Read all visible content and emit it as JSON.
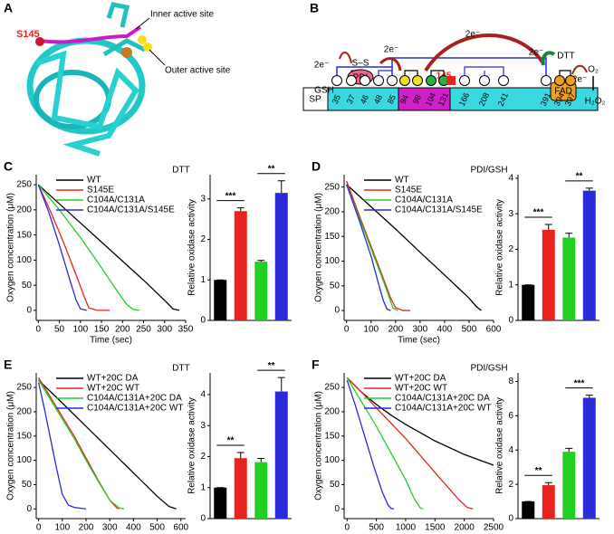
{
  "panel_labels": [
    "A",
    "B",
    "C",
    "D",
    "E",
    "F"
  ],
  "structure": {
    "site_label": "S145",
    "inner_label": "Inner active site",
    "outer_label": "Outer active site"
  },
  "domain_diagram": {
    "sp": "SP",
    "residues": [
      "35",
      "37",
      "46",
      "48",
      "85",
      "94",
      "98",
      "104",
      "131",
      "166",
      "208",
      "241",
      "391",
      "394",
      "397"
    ],
    "site": "145",
    "fad": "FAD",
    "pdi": "PDI",
    "disulfide": "S–S",
    "gsh": "GSH",
    "dtt": "DTT",
    "electron_labels": [
      "2e⁻",
      "2e⁻",
      "2e⁻",
      "2e⁻",
      "2e⁻"
    ],
    "oxygen": "O₂",
    "peroxide": "H₂O₂"
  },
  "chart_data": [
    {
      "type": "line",
      "annotation": "DTT",
      "x_label": "Time (sec)",
      "y_label": "Oxygen concentration (μM)",
      "xlim": [
        -5,
        350
      ],
      "ylim": [
        -20,
        270
      ],
      "xticks": [
        0,
        50,
        100,
        150,
        200,
        250,
        300,
        350
      ],
      "yticks": [
        0,
        50,
        100,
        150,
        200,
        250
      ],
      "series": [
        {
          "name": "WT",
          "color": "#000000",
          "x": [
            0,
            50,
            100,
            150,
            200,
            250,
            300,
            320,
            335
          ],
          "values": [
            250,
            212,
            174,
            136,
            98,
            60,
            20,
            3,
            0
          ]
        },
        {
          "name": "S145E",
          "color": "#e8231f",
          "x": [
            0,
            30,
            60,
            90,
            110,
            120,
            140,
            170
          ],
          "values": [
            250,
            195,
            135,
            70,
            25,
            5,
            0,
            0
          ]
        },
        {
          "name": "C104A/C131A",
          "color": "#22d022",
          "x": [
            0,
            50,
            100,
            150,
            190,
            210,
            225,
            240
          ],
          "values": [
            250,
            200,
            145,
            85,
            35,
            12,
            2,
            0
          ]
        },
        {
          "name": "C104A/C131A/S145E",
          "color": "#2a2ad8",
          "x": [
            0,
            25,
            50,
            75,
            90,
            100,
            115
          ],
          "values": [
            250,
            195,
            130,
            60,
            20,
            3,
            0
          ]
        }
      ]
    },
    {
      "type": "bar",
      "y_label": "Relative oxidase activity",
      "values": [
        1,
        2.7,
        1.45,
        3.15
      ],
      "errors": [
        0,
        0.08,
        0.03,
        0.3
      ],
      "colors": [
        "#000000",
        "#e8231f",
        "#22d022",
        "#2a2ad8"
      ],
      "ylim": [
        0,
        3.6
      ],
      "yticks": [
        0,
        1,
        2,
        3
      ],
      "significance": [
        "***",
        "**"
      ]
    },
    {
      "type": "line",
      "annotation": "PDI/GSH",
      "x_label": "Time (sec)",
      "y_label": "Oxygen concentration (μM)",
      "xlim": [
        -10,
        600
      ],
      "ylim": [
        -20,
        275
      ],
      "xticks": [
        0,
        100,
        200,
        300,
        400,
        500,
        600
      ],
      "yticks": [
        0,
        50,
        100,
        150,
        200,
        250
      ],
      "series": [
        {
          "name": "WT",
          "color": "#000000",
          "x": [
            0,
            100,
            200,
            300,
            400,
            500,
            530,
            550
          ],
          "values": [
            255,
            210,
            165,
            118,
            72,
            25,
            8,
            0
          ]
        },
        {
          "name": "S145E",
          "color": "#e8231f",
          "x": [
            0,
            50,
            100,
            150,
            180,
            200,
            230,
            260
          ],
          "values": [
            262,
            195,
            130,
            65,
            25,
            6,
            0,
            0
          ]
        },
        {
          "name": "C104A/C131A",
          "color": "#22d022",
          "x": [
            0,
            50,
            100,
            150,
            175,
            190,
            210
          ],
          "values": [
            255,
            190,
            125,
            60,
            25,
            5,
            0
          ]
        },
        {
          "name": "C104A/C131A/S145E",
          "color": "#2a2ad8",
          "x": [
            0,
            50,
            100,
            130,
            150,
            165,
            180
          ],
          "values": [
            255,
            185,
            110,
            55,
            20,
            3,
            0
          ]
        }
      ]
    },
    {
      "type": "bar",
      "y_label": "Relative oxidase activity",
      "values": [
        1,
        2.55,
        2.33,
        3.65
      ],
      "errors": [
        0,
        0.15,
        0.12,
        0.07
      ],
      "colors": [
        "#000000",
        "#e8231f",
        "#22d022",
        "#2a2ad8"
      ],
      "ylim": [
        0,
        4.1
      ],
      "yticks": [
        0,
        1,
        2,
        3,
        4
      ],
      "significance": [
        "***",
        "**"
      ]
    },
    {
      "type": "line",
      "annotation": "DTT",
      "x_label": "Time (sec)",
      "y_label": "Oxygen concentration (μM)",
      "xlim": [
        -10,
        620
      ],
      "ylim": [
        -20,
        280
      ],
      "xticks": [
        0,
        100,
        200,
        300,
        400,
        500,
        600
      ],
      "yticks": [
        0,
        50,
        100,
        150,
        200,
        250
      ],
      "series": [
        {
          "name": "WT+20C DA",
          "color": "#000000",
          "x": [
            0,
            100,
            200,
            300,
            400,
            500,
            550,
            580
          ],
          "values": [
            265,
            218,
            170,
            122,
            74,
            26,
            5,
            0
          ]
        },
        {
          "name": "WT+20C WT",
          "color": "#e8231f",
          "x": [
            0,
            50,
            100,
            150,
            200,
            250,
            300,
            330,
            340
          ],
          "values": [
            270,
            230,
            190,
            150,
            105,
            60,
            18,
            2,
            0
          ]
        },
        {
          "name": "C104A/C131A+20C DA",
          "color": "#22d022",
          "x": [
            0,
            50,
            100,
            150,
            200,
            250,
            300,
            340,
            360
          ],
          "values": [
            265,
            225,
            185,
            145,
            100,
            58,
            18,
            2,
            0
          ]
        },
        {
          "name": "C104A/C131A+20C WT",
          "color": "#2a2ad8",
          "x": [
            0,
            25,
            50,
            75,
            100,
            125,
            150,
            200
          ],
          "values": [
            260,
            205,
            145,
            85,
            30,
            8,
            3,
            0
          ]
        }
      ]
    },
    {
      "type": "bar",
      "y_label": "Relative oxidase activity",
      "values": [
        1,
        1.95,
        1.82,
        4.1
      ],
      "errors": [
        0,
        0.18,
        0.12,
        0.45
      ],
      "colors": [
        "#000000",
        "#e8231f",
        "#22d022",
        "#2a2ad8"
      ],
      "ylim": [
        0,
        4.7
      ],
      "yticks": [
        0,
        1,
        2,
        3,
        4
      ],
      "significance": [
        "**",
        "**"
      ]
    },
    {
      "type": "line",
      "annotation": "PDI/GSH",
      "x_label": "Time (sec)",
      "y_label": "Oxygen concentration (μM)",
      "xlim": [
        -50,
        2500
      ],
      "ylim": [
        -20,
        280
      ],
      "xticks": [
        0,
        500,
        1000,
        1500,
        2000,
        2500
      ],
      "yticks": [
        0,
        50,
        100,
        150,
        200,
        250
      ],
      "series": [
        {
          "name": "WT+20C DA",
          "color": "#000000",
          "x": [
            0,
            250,
            500,
            750,
            1000,
            1500,
            2000,
            2500
          ],
          "values": [
            270,
            240,
            215,
            193,
            174,
            140,
            112,
            90
          ]
        },
        {
          "name": "WT+20C WT",
          "color": "#e8231f",
          "x": [
            0,
            250,
            500,
            1000,
            1500,
            1900,
            2050,
            2150
          ],
          "values": [
            270,
            240,
            208,
            145,
            75,
            20,
            3,
            0
          ]
        },
        {
          "name": "C104A/C131A+20C DA",
          "color": "#22d022",
          "x": [
            0,
            250,
            500,
            750,
            1000,
            1150,
            1250,
            1300
          ],
          "values": [
            270,
            220,
            170,
            115,
            60,
            20,
            2,
            0
          ]
        },
        {
          "name": "C104A/C131A+20C WT",
          "color": "#2a2ad8",
          "x": [
            0,
            150,
            300,
            450,
            600,
            700,
            750,
            800
          ],
          "values": [
            265,
            210,
            150,
            90,
            35,
            8,
            1,
            0
          ]
        }
      ]
    },
    {
      "type": "bar",
      "y_label": "Relative oxidase activity",
      "values": [
        1,
        1.95,
        3.9,
        7.05
      ],
      "errors": [
        0,
        0.15,
        0.2,
        0.15
      ],
      "colors": [
        "#000000",
        "#e8231f",
        "#22d022",
        "#2a2ad8"
      ],
      "ylim": [
        0,
        8.5
      ],
      "yticks": [
        0,
        2,
        4,
        6,
        8
      ],
      "significance": [
        "**",
        "***"
      ]
    }
  ]
}
